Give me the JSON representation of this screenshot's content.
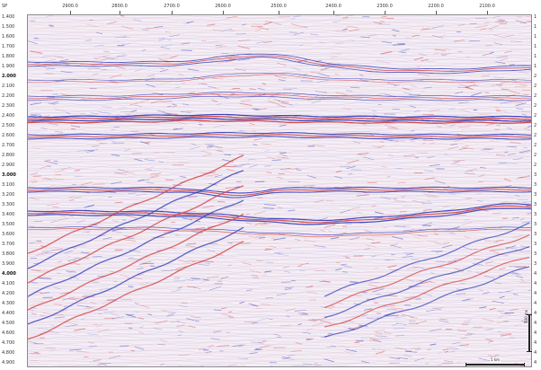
{
  "header": {
    "sp_label": "SP",
    "shotpoints": [
      "2900.0",
      "2800.0",
      "2700.0",
      "2600.0",
      "2500.0",
      "2400.0",
      "2300.0",
      "2200.0",
      "2100.0"
    ]
  },
  "left_axis": {
    "labels": [
      "1.400",
      "1.500",
      "1.600",
      "1.700",
      "1.800",
      "1.900",
      "2.000",
      "2.100",
      "2.200",
      "2.300",
      "2.400",
      "2.500",
      "2.600",
      "2.700",
      "2.800",
      "2.900",
      "3.000",
      "3.100",
      "3.200",
      "3.300",
      "3.400",
      "3.500",
      "3.600",
      "3.700",
      "3.800",
      "3.900",
      "4.000",
      "4.100",
      "4.200",
      "4.300",
      "4.400",
      "4.500",
      "4.600",
      "4.700",
      "4.800",
      "4.900"
    ],
    "bold_labels": [
      "2.000",
      "3.000",
      "4.000"
    ]
  },
  "right_axis": {
    "labels": [
      "1",
      "1",
      "1",
      "1",
      "1",
      "1",
      "2",
      "2",
      "2",
      "2",
      "2",
      "2",
      "2",
      "2",
      "2",
      "2",
      "3",
      "3",
      "3",
      "3",
      "3",
      "3",
      "3",
      "3",
      "3",
      "3",
      "4",
      "4",
      "4",
      "4",
      "4",
      "4",
      "4",
      "4",
      "4",
      "4"
    ]
  },
  "scale_bars": {
    "vertical_label": "500 ms",
    "horizontal_label": "5 km"
  },
  "colors": {
    "positive": "#d23a3a",
    "negative": "#2a36b8",
    "background": "#f4eef6"
  }
}
